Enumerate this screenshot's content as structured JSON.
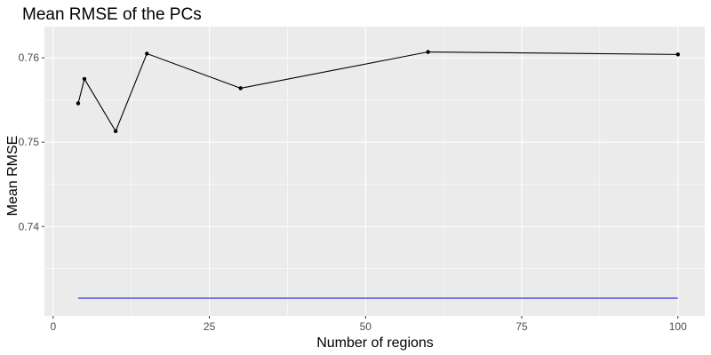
{
  "chart_data": {
    "type": "line",
    "title": "Mean RMSE of the PCs",
    "xlabel": "Number of regions",
    "ylabel": "Mean RMSE",
    "xlim": [
      -1.4,
      104.3
    ],
    "ylim": [
      0.7294,
      0.7637
    ],
    "xticks": [
      0,
      25,
      50,
      75,
      100
    ],
    "xtick_labels": [
      "0",
      "25",
      "50",
      "75",
      "100"
    ],
    "yticks": [
      0.74,
      0.75,
      0.76
    ],
    "ytick_labels": [
      "0.74",
      "0.75",
      "0.76"
    ],
    "grid": true,
    "legend": "none",
    "series": [
      {
        "color": "#000000",
        "x": [
          4,
          5,
          10,
          15,
          30,
          60,
          100
        ],
        "y": [
          0.7546,
          0.7575,
          0.7513,
          0.7605,
          0.7564,
          0.7607,
          0.7604
        ]
      }
    ],
    "hlines": [
      {
        "y": 0.7315,
        "x": [
          4,
          100
        ],
        "color": "#0000cc"
      }
    ]
  },
  "colors": {
    "panel_background": "#ebebeb",
    "grid_major": "#ffffff",
    "line": "#000000",
    "reference_line": "#0000cc"
  }
}
